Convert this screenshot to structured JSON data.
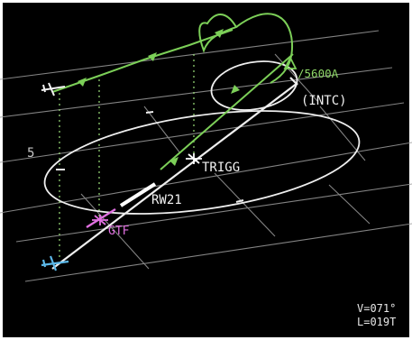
{
  "colors": {
    "background": "#000000",
    "frame": "#ffffff",
    "grid": "#9a9a9a",
    "route_green": "#7ccf58",
    "route_white": "#eeeeee",
    "active_magenta": "#e070e0",
    "aircraft_cyan": "#5cb8e8",
    "vertical_drop": "#9be07a"
  },
  "labels": {
    "altitude_constraint": "/5600A",
    "intercept_leg": "(INTC)",
    "fix_trigg": "TRIGG",
    "runway": "RW21",
    "active_fix": "GTF",
    "range_ring_value": "5"
  },
  "readouts": {
    "view_angle": "V=071°",
    "heading_line": "L=019T"
  },
  "icons": {
    "aircraft": "aircraft-symbol-icon",
    "waypoint": "waypoint-star-icon",
    "flight_direction": "direction-arrow-icon"
  }
}
